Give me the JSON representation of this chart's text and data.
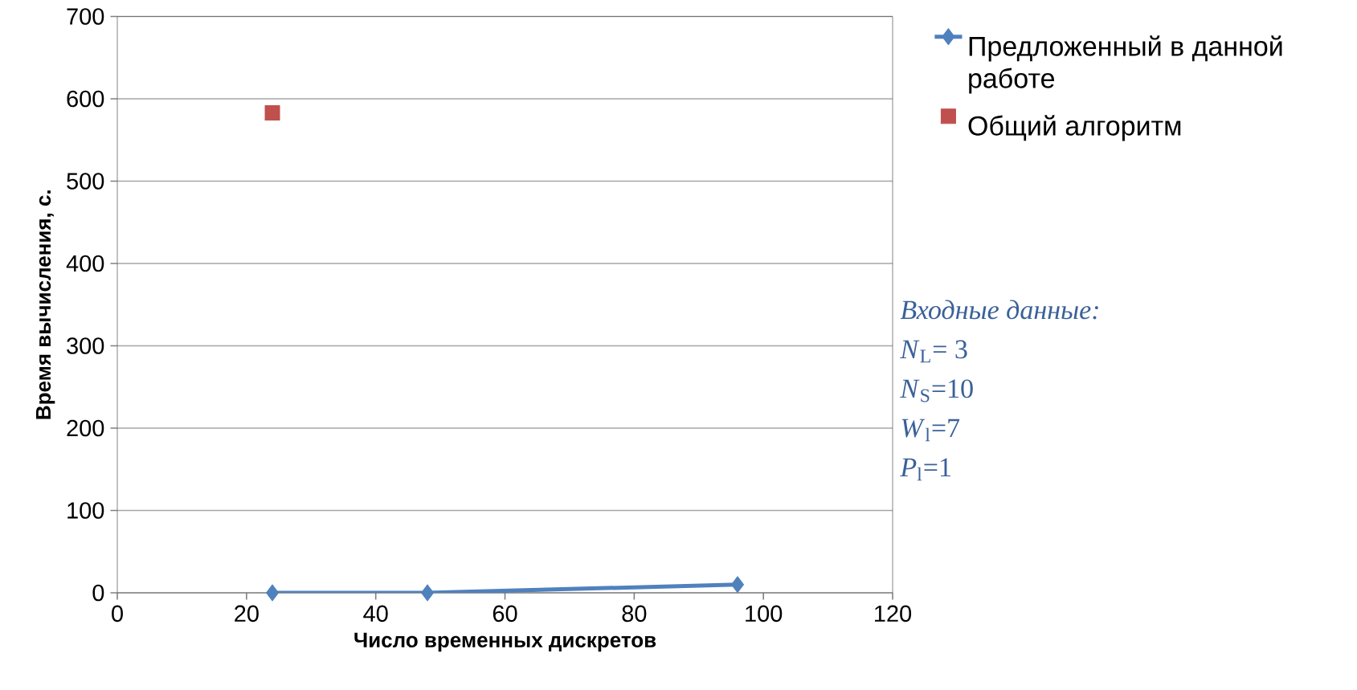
{
  "chart_data": {
    "type": "line",
    "xlabel": "Число временных дискретов",
    "ylabel": "Время вычисления, с.",
    "xlim": [
      0,
      120
    ],
    "xticks": [
      0,
      20,
      40,
      60,
      80,
      100,
      120
    ],
    "ylim": [
      0,
      700
    ],
    "yticks": [
      0,
      100,
      200,
      300,
      400,
      500,
      600,
      700
    ],
    "grid": "y",
    "legend": "top right",
    "series": [
      {
        "name": "Предложенный в данной работе",
        "color": "#4f81bd",
        "marker": "diamond",
        "x": [
          24,
          48,
          96
        ],
        "values": [
          0,
          0,
          10
        ]
      },
      {
        "name": "Общий алгоритм",
        "color": "#c0504d",
        "type": "scatter",
        "marker": "square",
        "x": [
          24
        ],
        "values": [
          583
        ]
      }
    ],
    "annotations": [
      "*Входные данные:*",
      "*N*$_{L}$= 3",
      "*N*$_{S}$=10",
      "*W*$_{l}$=7",
      "*P*$_{l}$=1"
    ]
  }
}
